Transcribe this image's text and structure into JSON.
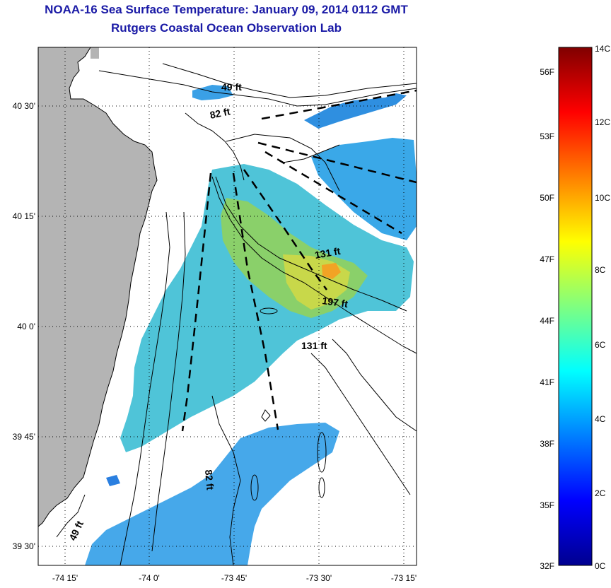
{
  "title": {
    "line1": "NOAA-16 Sea Surface Temperature:  January 09, 2014 0112 GMT",
    "line2": "Rutgers Coastal Ocean Observation Lab"
  },
  "map": {
    "lat_ticks": [
      "40 30'",
      "40 15'",
      "40 0'",
      "39 45'",
      "39 30'"
    ],
    "lon_ticks": [
      "-74 15'",
      "-74 0'",
      "-73 45'",
      "-73 30'",
      "-73 15'"
    ],
    "depth_labels": [
      "49 ft",
      "82 ft",
      "131 ft",
      "197 ft",
      "131 ft",
      "82 ft",
      "49 ft"
    ],
    "colors": {
      "land": "#b4b4b4",
      "frame": "#000000",
      "title": "#1a1aa6"
    }
  },
  "colorbar": {
    "fahrenheit": [
      "56F",
      "53F",
      "50F",
      "47F",
      "44F",
      "41F",
      "38F",
      "35F",
      "32F"
    ],
    "celsius": [
      "14C",
      "12C",
      "10C",
      "8C",
      "6C",
      "4C",
      "2C",
      "0C"
    ]
  }
}
